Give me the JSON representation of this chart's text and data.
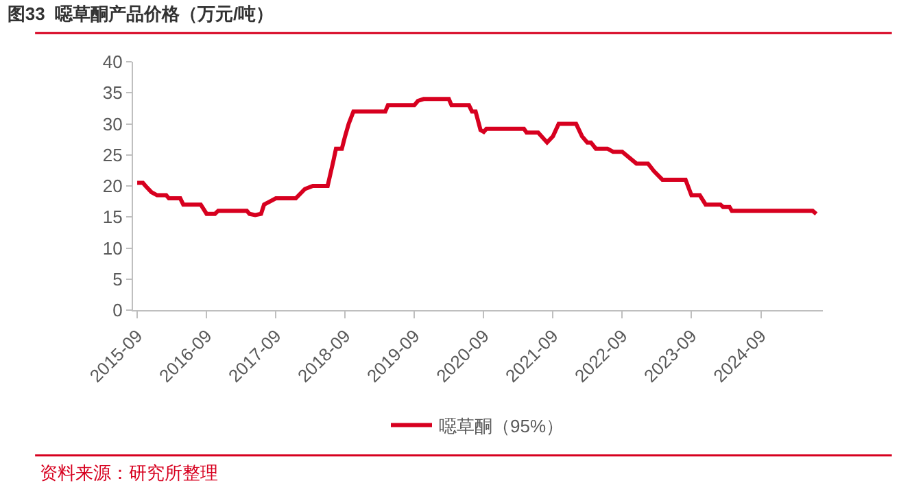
{
  "chart_data": {
    "type": "line",
    "title": "图33  噁草酮产品价格（万元/吨）",
    "annotations": [
      "资料来源：研究所整理"
    ],
    "xlim": [
      "2015-08-10",
      "2025-07-25"
    ],
    "xticks": [
      {
        "value": "2015-09",
        "label": "2015-09"
      },
      {
        "value": "2016-09",
        "label": "2016-09"
      },
      {
        "value": "2017-09",
        "label": "2017-09"
      },
      {
        "value": "2018-09",
        "label": "2018-09"
      },
      {
        "value": "2019-09",
        "label": "2019-09"
      },
      {
        "value": "2020-09",
        "label": "2020-09"
      },
      {
        "value": "2021-09",
        "label": "2021-09"
      },
      {
        "value": "2022-09",
        "label": "2022-09"
      },
      {
        "value": "2023-09",
        "label": "2023-09"
      },
      {
        "value": "2024-09",
        "label": "2024-09"
      }
    ],
    "ylim": [
      0,
      40
    ],
    "yticks": [
      0,
      5,
      10,
      15,
      20,
      25,
      30,
      35,
      40
    ],
    "grid": false,
    "legend": "bottom",
    "marker": "none",
    "line_style": "solid",
    "series": [
      {
        "name": "噁草酮（95%）",
        "color": "#d7001f",
        "x": [
          "2015-09-01",
          "2015-10-01",
          "2015-10-15",
          "2015-11-15",
          "2015-12-15",
          "2016-02-01",
          "2016-02-15",
          "2016-04-15",
          "2016-05-01",
          "2016-08-01",
          "2016-09-01",
          "2016-10-15",
          "2016-11-01",
          "2017-04-01",
          "2017-04-15",
          "2017-05-15",
          "2017-06-15",
          "2017-07-01",
          "2017-08-01",
          "2017-09-01",
          "2017-12-15",
          "2018-02-01",
          "2018-03-15",
          "2018-06-01",
          "2018-07-01",
          "2018-07-15",
          "2018-08-15",
          "2018-09-01",
          "2018-09-20",
          "2018-10-15",
          "2019-04-01",
          "2019-04-15",
          "2019-09-01",
          "2019-09-20",
          "2019-10-20",
          "2020-03-01",
          "2020-03-15",
          "2020-06-15",
          "2020-07-01",
          "2020-07-20",
          "2020-08-15",
          "2020-09-01",
          "2020-09-15",
          "2021-04-01",
          "2021-04-15",
          "2021-06-15",
          "2021-08-01",
          "2021-09-01",
          "2021-10-01",
          "2022-01-01",
          "2022-02-01",
          "2022-03-01",
          "2022-03-20",
          "2022-04-15",
          "2022-06-15",
          "2022-07-15",
          "2022-09-01",
          "2022-11-15",
          "2023-01-15",
          "2023-02-15",
          "2023-04-01",
          "2023-08-01",
          "2023-09-01",
          "2023-10-15",
          "2023-11-15",
          "2024-02-01",
          "2024-02-15",
          "2024-03-20",
          "2024-04-01",
          "2025-06-01",
          "2025-06-20"
        ],
        "values": [
          20.5,
          20.5,
          20,
          19,
          18.5,
          18.5,
          18,
          18,
          17,
          17,
          15.5,
          15.5,
          16,
          16,
          15.5,
          15.3,
          15.5,
          17,
          17.5,
          18,
          18,
          19.5,
          20,
          20,
          24,
          26,
          26,
          28,
          30,
          32,
          32,
          33,
          33,
          33.7,
          34,
          34,
          33,
          33,
          32,
          32,
          29,
          28.7,
          29.2,
          29.2,
          28.6,
          28.6,
          27,
          28,
          30,
          30,
          28,
          27,
          27,
          26,
          26,
          25.5,
          25.5,
          23.6,
          23.6,
          22.4,
          21,
          21,
          18.5,
          18.5,
          17,
          17,
          16.6,
          16.6,
          16,
          16,
          15.5
        ]
      }
    ]
  }
}
